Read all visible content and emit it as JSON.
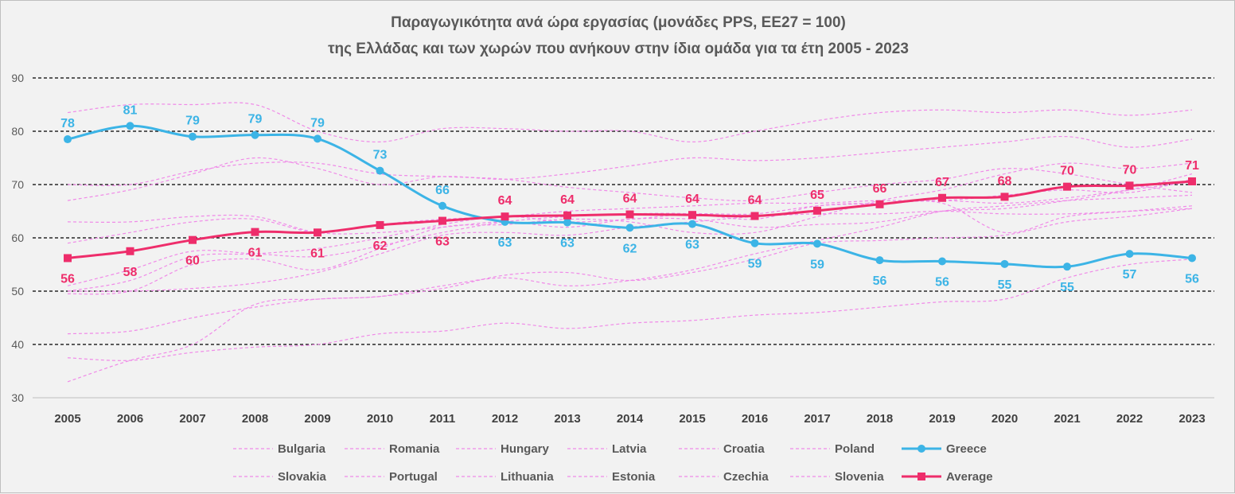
{
  "chart_data": {
    "type": "line",
    "title_line1": "Παραγωγικότητα ανά ώρα εργασίας (μονάδες PPS, ΕΕ27 = 100)",
    "title_line2": "της Ελλάδας και των χωρών που ανήκουν στην ίδια ομάδα για τα έτη 2005 - 2023",
    "x": [
      "2005",
      "2006",
      "2007",
      "2008",
      "2009",
      "2010",
      "2011",
      "2012",
      "2013",
      "2014",
      "2015",
      "2016",
      "2017",
      "2018",
      "2019",
      "2020",
      "2021",
      "2022",
      "2023"
    ],
    "ylim": [
      30,
      90
    ],
    "yticks": [
      "30",
      "40",
      "50",
      "60",
      "70",
      "80",
      "90"
    ],
    "grid": true,
    "legend_position": "bottom",
    "colors": {
      "greece": "#3cb4e6",
      "average": "#ee2d6b",
      "others": "#f08ae8"
    },
    "series": [
      {
        "name": "Bulgaria",
        "style": "dashed",
        "values": [
          33,
          37,
          40,
          47.5,
          48.5,
          49,
          50.5,
          53,
          53.5,
          52,
          53.5,
          56,
          59,
          59.5,
          60,
          60.5,
          63,
          64,
          65.5
        ]
      },
      {
        "name": "Romania",
        "style": "dashed",
        "values": [
          37.5,
          37,
          38.5,
          39.5,
          40,
          42,
          42.5,
          44,
          43,
          44,
          44.5,
          45.5,
          46,
          47,
          48,
          48.5,
          52.5,
          55,
          56
        ]
      },
      {
        "name": "Hungary",
        "style": "dashed",
        "values": [
          42,
          42.5,
          45,
          47,
          48.5,
          49,
          51,
          52.5,
          51,
          52,
          54,
          57,
          59.5,
          62,
          65,
          66,
          67,
          67.5,
          68
        ]
      },
      {
        "name": "Latvia",
        "style": "dashed",
        "values": [
          50,
          50,
          50.5,
          51.5,
          53.5,
          57,
          60.5,
          61,
          60.5,
          62,
          63,
          64,
          64.5,
          64.5,
          65,
          64.5,
          64.5,
          65,
          65.5
        ]
      },
      {
        "name": "Croatia",
        "style": "dashed",
        "values": [
          63,
          63,
          64,
          64,
          61,
          61,
          62,
          63,
          62,
          63.5,
          63.5,
          62,
          62.5,
          63,
          65,
          65.5,
          67,
          69,
          72
        ]
      },
      {
        "name": "Poland",
        "style": "dashed",
        "values": [
          50,
          52,
          56.5,
          57,
          58,
          60,
          62.5,
          64,
          63,
          63.5,
          64.5,
          64.5,
          66,
          66.5,
          67,
          66.5,
          67.5,
          69,
          70.5
        ]
      },
      {
        "name": "Slovakia",
        "style": "dashed",
        "values": [
          67,
          69,
          72,
          75,
          73,
          70,
          71.5,
          71,
          72,
          73.5,
          75,
          74.5,
          75,
          76,
          77,
          78,
          79,
          77,
          78.5
        ]
      },
      {
        "name": "Portugal",
        "style": "dashed",
        "values": [
          59,
          61,
          63,
          63.5,
          61,
          62.5,
          63.5,
          64,
          65,
          65.5,
          66,
          66.5,
          66.5,
          67,
          67,
          68,
          69,
          68.5,
          71
        ]
      },
      {
        "name": "Lithuania",
        "style": "dashed",
        "values": [
          49.5,
          50,
          55,
          56,
          54,
          58,
          62,
          62.5,
          63.5,
          63,
          61,
          61,
          64,
          67,
          69,
          72,
          74,
          73,
          74
        ]
      },
      {
        "name": "Estonia",
        "style": "dashed",
        "values": [
          51,
          54,
          57.5,
          57,
          56.5,
          58.5,
          61,
          63,
          64,
          64.5,
          64.5,
          63.5,
          66,
          66.5,
          66.5,
          61,
          64,
          65,
          66
        ]
      },
      {
        "name": "Czechia",
        "style": "dashed",
        "values": [
          70,
          70,
          72.5,
          74,
          74,
          72,
          71.5,
          71,
          69.5,
          68.5,
          67.5,
          67,
          68.5,
          70,
          71,
          73,
          72,
          70,
          68.5
        ]
      },
      {
        "name": "Slovenia",
        "style": "dashed",
        "values": [
          83.5,
          85,
          85,
          85,
          80,
          78,
          80.5,
          80.5,
          80,
          80,
          78,
          80,
          82,
          83.5,
          84,
          83.5,
          84,
          83,
          84
        ]
      },
      {
        "name": "Greece",
        "style": "solid-circle",
        "values": [
          78.5,
          81,
          79,
          79.3,
          78.6,
          72.6,
          66,
          63,
          62.9,
          61.9,
          62.6,
          59,
          58.9,
          55.8,
          55.6,
          55.1,
          54.6,
          57,
          56.2
        ],
        "labels": [
          "78",
          "81",
          "79",
          "79",
          "79",
          "73",
          "66",
          "63",
          "63",
          "62",
          "63",
          "59",
          "59",
          "56",
          "56",
          "55",
          "55",
          "57",
          "56"
        ]
      },
      {
        "name": "Average",
        "style": "solid-square",
        "values": [
          56.2,
          57.5,
          59.6,
          61.1,
          61,
          62.4,
          63.2,
          64,
          64.2,
          64.4,
          64.3,
          64.1,
          65.1,
          66.3,
          67.5,
          67.7,
          69.6,
          69.8,
          70.6
        ],
        "labels": [
          "56",
          "58",
          "60",
          "61",
          "61",
          "62",
          "63",
          "64",
          "64",
          "64",
          "64",
          "64",
          "65",
          "66",
          "67",
          "68",
          "70",
          "70",
          "71"
        ]
      }
    ],
    "legend_row1": [
      "Bulgaria",
      "Romania",
      "Hungary",
      "Latvia",
      "Croatia",
      "Poland",
      "Greece"
    ],
    "legend_row2": [
      "Slovakia",
      "Portugal",
      "Lithuania",
      "Estonia",
      "Czechia",
      "Slovenia",
      "Average"
    ]
  }
}
